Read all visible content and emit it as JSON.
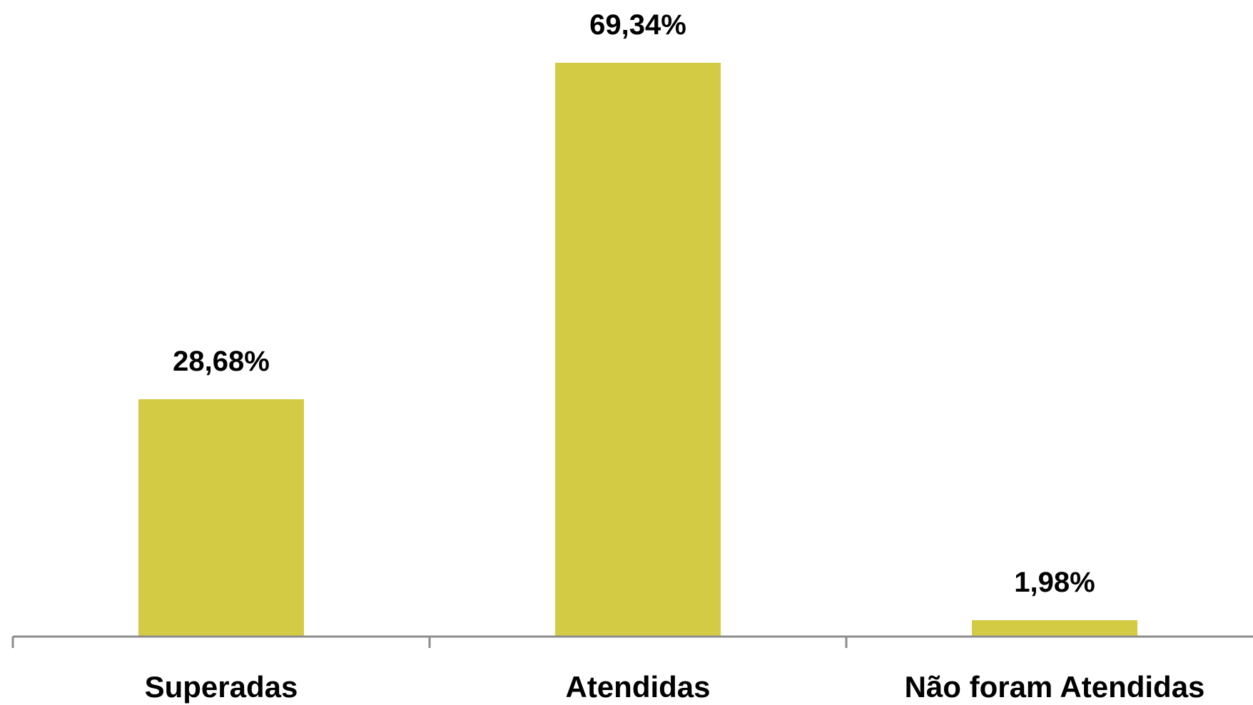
{
  "chart_data": {
    "type": "bar",
    "categories": [
      "Superadas",
      "Atendidas",
      "Não foram Atendidas"
    ],
    "values": [
      28.68,
      69.34,
      1.98
    ],
    "data_labels": [
      "28,68%",
      "69,34%",
      "1,98%"
    ],
    "title": "",
    "xlabel": "",
    "ylabel": "",
    "ylim": [
      0,
      69.34
    ],
    "grid": false,
    "legend": "none",
    "colors": {
      "bar": "#D4CB44",
      "axis": "#8C8C8C"
    }
  }
}
